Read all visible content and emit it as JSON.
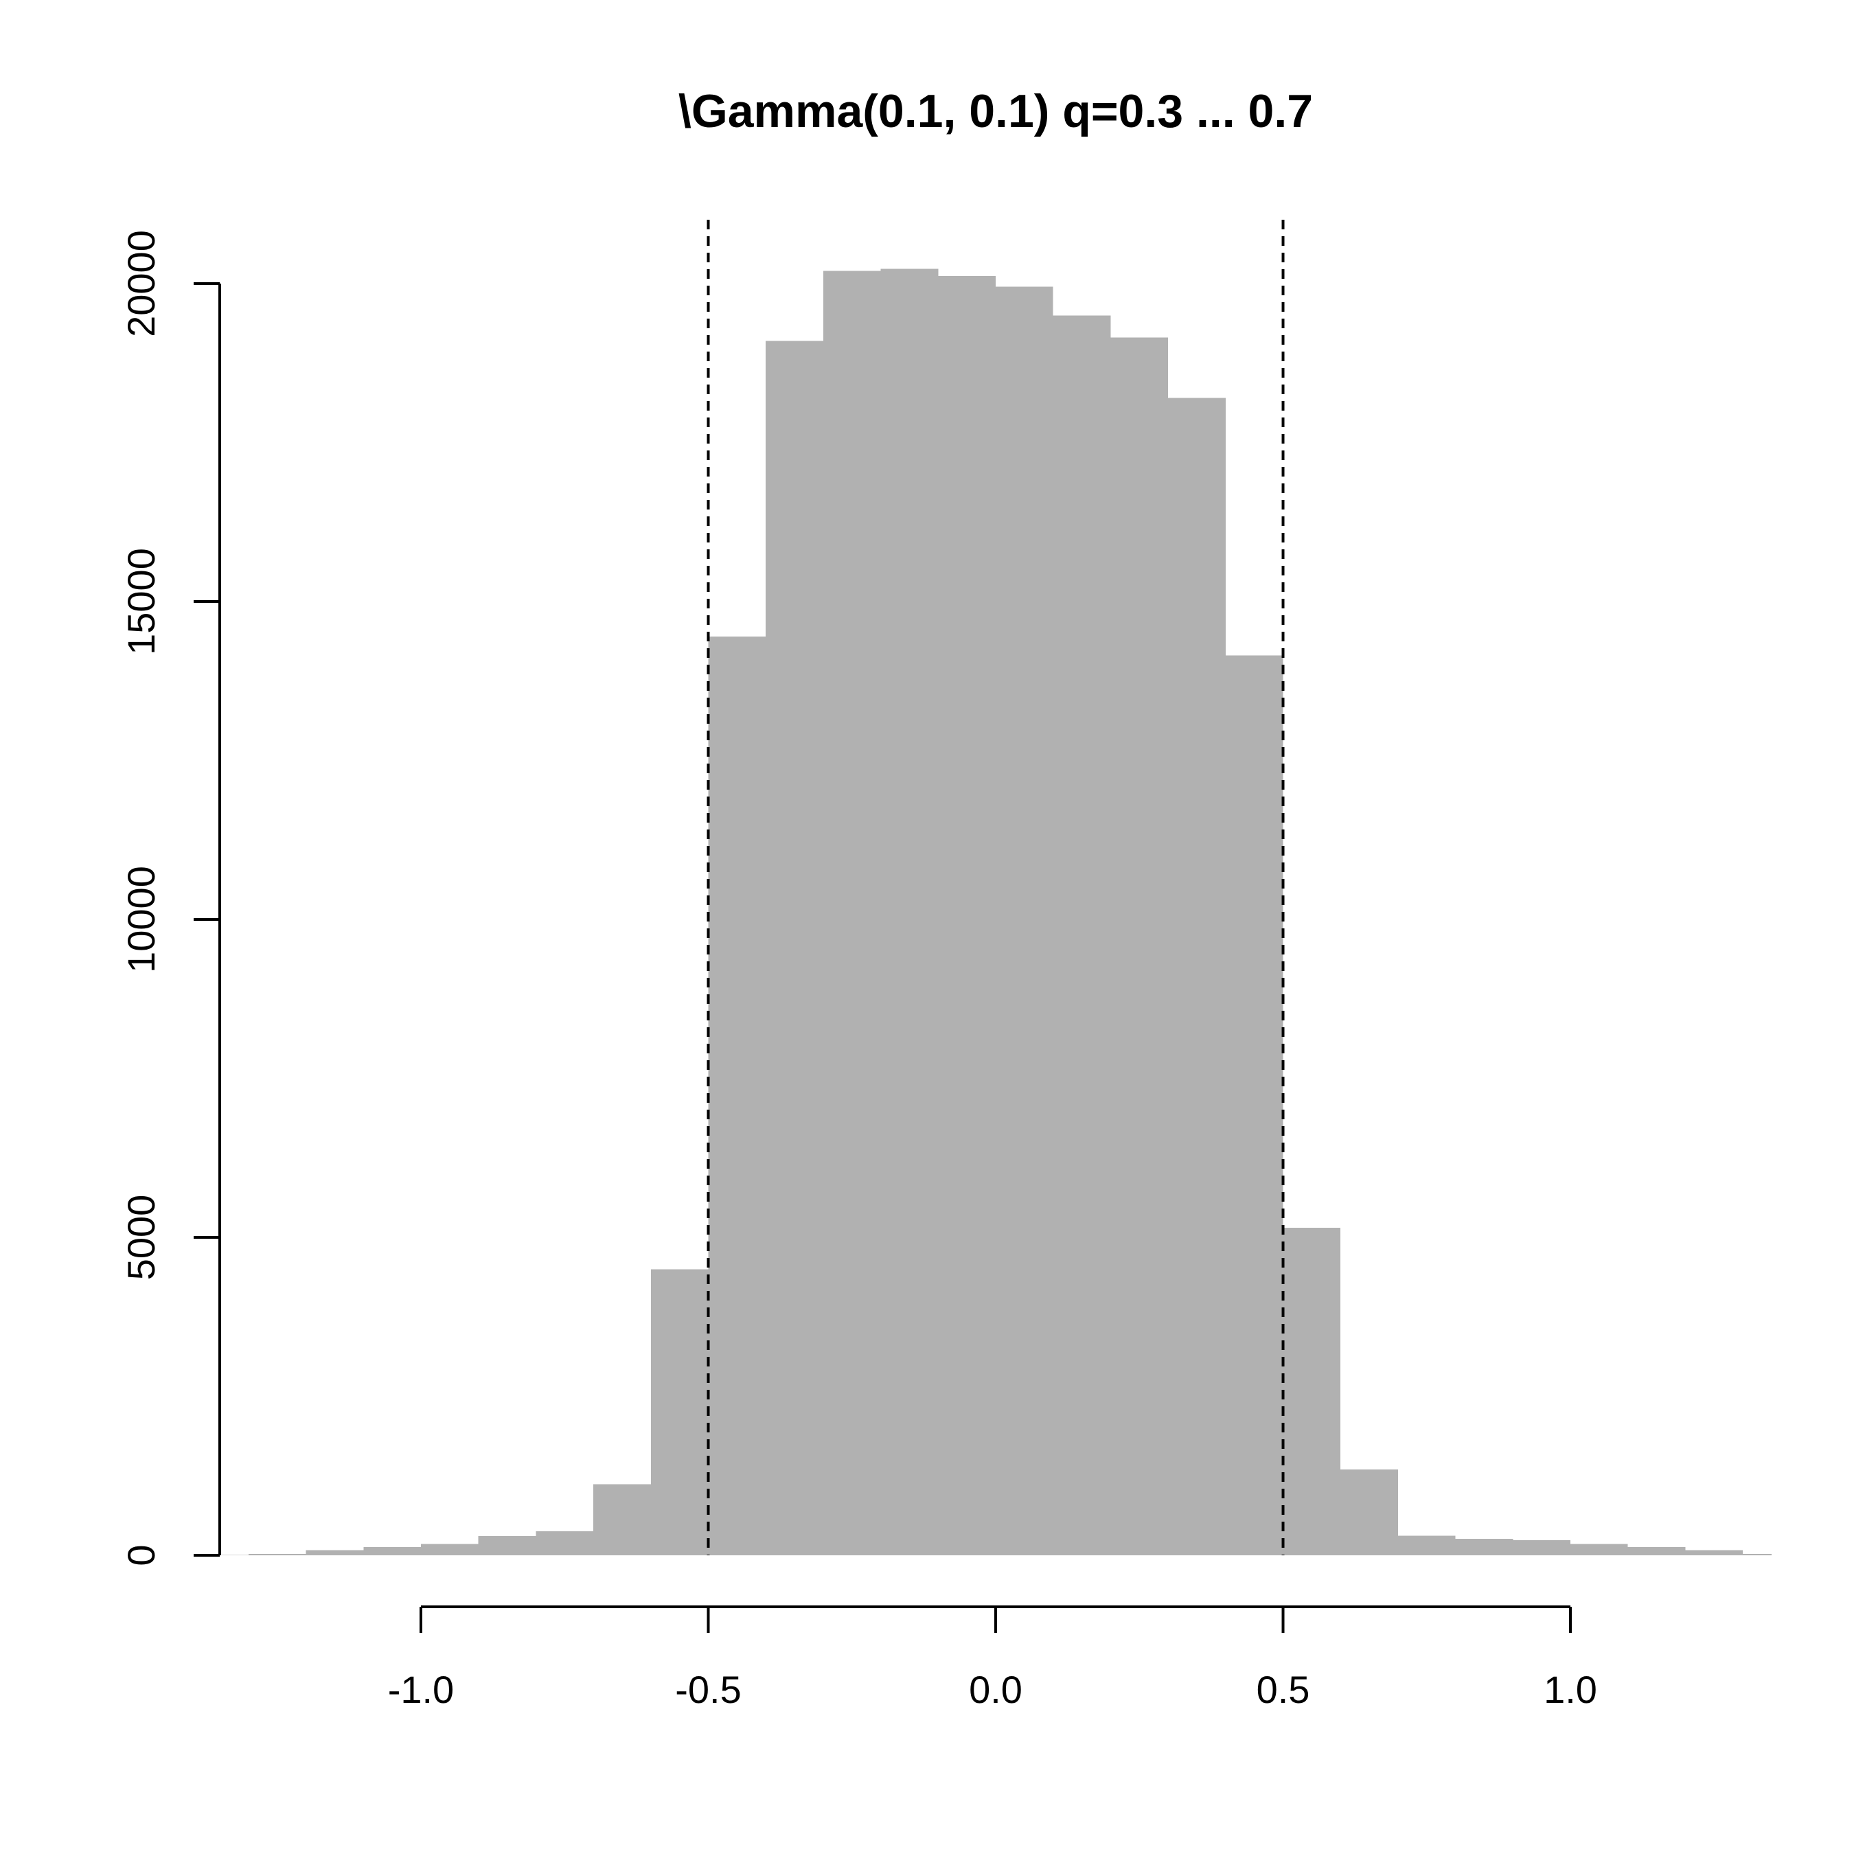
{
  "chart_data": {
    "type": "bar",
    "subtype": "histogram",
    "title": "\\Gamma(0.1, 0.1) q=0.3 ... 0.7",
    "xlabel": "",
    "ylabel": "",
    "xlim": [
      -1.35,
      1.35
    ],
    "ylim": [
      0,
      20000
    ],
    "bin_edges": [
      -1.4,
      -1.3,
      -1.2,
      -1.1,
      -1.0,
      -0.9,
      -0.8,
      -0.7,
      -0.6,
      -0.5,
      -0.4,
      -0.3,
      -0.2,
      -0.1,
      0.0,
      0.1,
      0.2,
      0.3,
      0.4,
      0.5,
      0.6,
      0.7,
      0.8,
      0.9,
      1.0,
      1.1,
      1.2,
      1.3,
      1.4
    ],
    "values": [
      5,
      20,
      80,
      130,
      180,
      300,
      380,
      1120,
      4500,
      14450,
      19100,
      20200,
      20230,
      20120,
      19950,
      19500,
      19150,
      18200,
      14150,
      5150,
      1350,
      310,
      260,
      240,
      180,
      130,
      80,
      20
    ],
    "bar_color": "#b1b1b1",
    "vlines": [
      -0.5,
      0.5
    ],
    "vline_style": "dashed",
    "x_ticks": [
      -1.0,
      -0.5,
      0.0,
      0.5,
      1.0
    ],
    "x_tick_labels": [
      "-1.0",
      "-0.5",
      "0.0",
      "0.5",
      "1.0"
    ],
    "y_ticks": [
      0,
      5000,
      10000,
      15000,
      20000
    ],
    "y_tick_labels": [
      "0",
      "5000",
      "10000",
      "15000",
      "20000"
    ],
    "grid": false,
    "legend": "none"
  }
}
